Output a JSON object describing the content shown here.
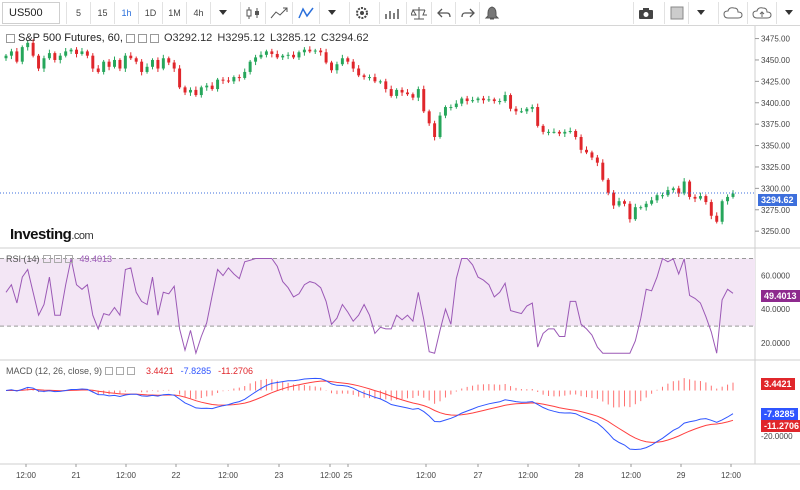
{
  "toolbar": {
    "symbol": "US500",
    "intervals": [
      "5",
      "15",
      "1h",
      "1D",
      "1M",
      "4h"
    ],
    "active_interval": "1h"
  },
  "legend": {
    "title": "S&P 500 Futures, 60,",
    "open": "O3292.12",
    "high": "H3295.12",
    "low": "L3285.12",
    "close": "C3294.62"
  },
  "logo": {
    "name": "Investing",
    "suffix": ".com"
  },
  "rsi_legend": {
    "label": "RSI (14)",
    "value": "49.4013"
  },
  "macd_legend": {
    "label": "MACD (12, 26, close, 9)",
    "hist": "3.4421",
    "macd": "-7.8285",
    "signal": "-11.2706"
  },
  "tags": {
    "price": "3294.62",
    "rsi": "49.4013",
    "hist": "3.4421",
    "macd": "-7.8285",
    "signal": "-11.2706"
  },
  "colors": {
    "up": "#26a65b",
    "down": "#e0262b",
    "rsi": "#9b59b6",
    "macd": "#2f55ff",
    "signal": "#ff4040",
    "hist_pos": "#ff7070"
  },
  "chart_data": [
    {
      "type": "candlestick",
      "title": "S&P 500 Futures, 60,",
      "ylim": [
        3235,
        3485
      ],
      "y_ticks": [
        3475.0,
        3450.0,
        3425.0,
        3400.0,
        3375.0,
        3350.0,
        3325.0,
        3300.0,
        3275.0,
        3250.0
      ],
      "x_ticks": [
        "12:00",
        "21",
        "12:00",
        "22",
        "12:00",
        "23",
        "12:00",
        "25",
        "12:00",
        "27",
        "12:00",
        "28",
        "12:00",
        "29",
        "12:00"
      ],
      "close": [
        3455,
        3460,
        3448,
        3465,
        3470,
        3455,
        3440,
        3452,
        3458,
        3450,
        3455,
        3460,
        3462,
        3457,
        3460,
        3455,
        3440,
        3436,
        3448,
        3442,
        3450,
        3440,
        3455,
        3452,
        3448,
        3436,
        3442,
        3450,
        3440,
        3452,
        3447,
        3440,
        3418,
        3412,
        3415,
        3409,
        3418,
        3420,
        3416,
        3427,
        3426,
        3425,
        3430,
        3429,
        3436,
        3448,
        3453,
        3456,
        3460,
        3457,
        3453,
        3455,
        3456,
        3453,
        3459,
        3462,
        3460,
        3461,
        3459,
        3447,
        3438,
        3445,
        3452,
        3448,
        3440,
        3432,
        3430,
        3430,
        3425,
        3425,
        3416,
        3408,
        3415,
        3412,
        3410,
        3406,
        3416,
        3390,
        3376,
        3360,
        3385,
        3395,
        3395,
        3399,
        3405,
        3402,
        3403,
        3405,
        3403,
        3404,
        3402,
        3402,
        3409,
        3393,
        3390,
        3390,
        3393,
        3395,
        3373,
        3366,
        3366,
        3366,
        3364,
        3366,
        3367,
        3360,
        3345,
        3342,
        3336,
        3330,
        3310,
        3295,
        3280,
        3285,
        3282,
        3264,
        3278,
        3278,
        3282,
        3286,
        3292,
        3292,
        3298,
        3300,
        3294,
        3308,
        3290,
        3288,
        3291,
        3284,
        3268,
        3261,
        3285,
        3290,
        3294
      ],
      "rsi": {
        "ylim": [
          10,
          75
        ],
        "y_ticks": [
          60.0,
          40.0,
          20.0
        ],
        "upper_band": 70,
        "lower_band": 30,
        "last": 49.4013
      },
      "macd": {
        "y_ticks": [
          -20.0
        ],
        "hist_last": 3.4421,
        "macd_last": -7.8285,
        "signal_last": -11.2706
      }
    }
  ]
}
